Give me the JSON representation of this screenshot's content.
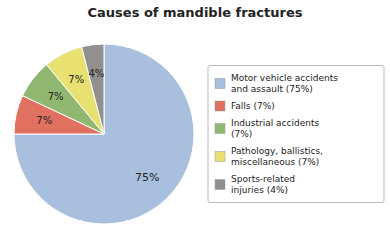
{
  "chart_data": {
    "type": "pie",
    "title": "Causes of mandible fractures",
    "categories": [
      "Motor vehicle accidents\nand assault (75%)",
      "Falls (7%)",
      "Industrial accidents\n(7%)",
      "Pathology, ballistics,\nmiscellaneous (7%)",
      "Sports-related\ninjuries (4%)"
    ],
    "values": [
      75,
      7,
      7,
      7,
      4
    ],
    "value_labels": [
      "75%",
      "7%",
      "7%",
      "7%",
      "4%"
    ],
    "colors": [
      "#a8c0de",
      "#e07060",
      "#90b870",
      "#e8e070",
      "#909090"
    ],
    "data_labels": true,
    "legend": "right"
  }
}
